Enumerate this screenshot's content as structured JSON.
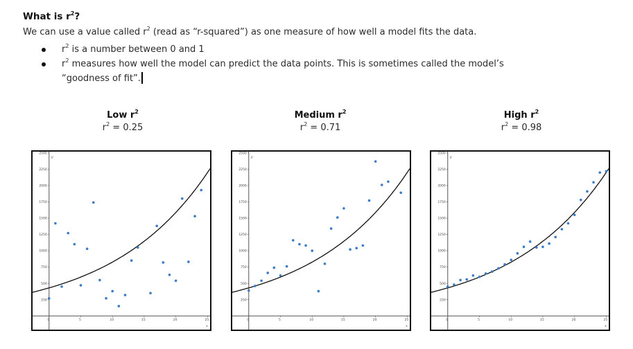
{
  "heading": {
    "text": "What is r",
    "sup": "2",
    "end": "?"
  },
  "intro": {
    "before": "We can use a value called r",
    "sup": "2",
    "after": " (read as “r-squared”) as one measure of how well a model fits the data."
  },
  "bullets": [
    {
      "prefix": "r",
      "sup": "2",
      "text": " is a number between 0 and 1",
      "cont": ""
    },
    {
      "prefix": "r",
      "sup": "2",
      "text": " measures how well the model can predict the data points. This is sometimes called the model’s",
      "cont": "“goodness of fit”."
    }
  ],
  "colors": {
    "point": "#3a7cc7",
    "curve": "#111111",
    "axis": "#555555"
  },
  "chart_data": [
    {
      "type": "scatter",
      "title": "Low r",
      "title_sup": "2",
      "subtitle_prefix": "r",
      "subtitle_sup": "2",
      "subtitle_value": " = 0.25",
      "xlabel": "x",
      "ylabel": "y",
      "xlim": [
        -2.6,
        25.4
      ],
      "ylim": [
        -210,
        2520
      ],
      "xticks": [
        0,
        5,
        10,
        15,
        20,
        25
      ],
      "yticks": [
        250,
        500,
        750,
        1000,
        1250,
        1500,
        1750,
        2000,
        2250,
        2500
      ],
      "fit": {
        "type": "exponential",
        "a": 430,
        "b": 0.0653
      },
      "points": [
        [
          0,
          270
        ],
        [
          1,
          1420
        ],
        [
          2,
          450
        ],
        [
          3,
          1270
        ],
        [
          4,
          1100
        ],
        [
          5,
          470
        ],
        [
          6,
          1030
        ],
        [
          7,
          1740
        ],
        [
          8,
          550
        ],
        [
          9,
          270
        ],
        [
          10,
          380
        ],
        [
          11,
          150
        ],
        [
          12,
          320
        ],
        [
          13,
          850
        ],
        [
          14,
          1050
        ],
        [
          16,
          350
        ],
        [
          17,
          1380
        ],
        [
          18,
          820
        ],
        [
          19,
          630
        ],
        [
          20,
          540
        ],
        [
          21,
          1800
        ],
        [
          22,
          830
        ],
        [
          23,
          1530
        ],
        [
          24,
          1930
        ]
      ]
    },
    {
      "type": "scatter",
      "title": "Medium r",
      "title_sup": "2",
      "subtitle_prefix": "r",
      "subtitle_sup": "2",
      "subtitle_value": " = 0.71",
      "xlabel": "x",
      "ylabel": "y",
      "xlim": [
        -2.6,
        25.4
      ],
      "ylim": [
        -210,
        2520
      ],
      "xticks": [
        0,
        5,
        10,
        15,
        20,
        25
      ],
      "yticks": [
        250,
        500,
        750,
        1000,
        1250,
        1500,
        1750,
        2000,
        2250,
        2500
      ],
      "fit": {
        "type": "exponential",
        "a": 430,
        "b": 0.0653
      },
      "points": [
        [
          0,
          390
        ],
        [
          1,
          460
        ],
        [
          2,
          540
        ],
        [
          3,
          660
        ],
        [
          4,
          740
        ],
        [
          5,
          620
        ],
        [
          6,
          760
        ],
        [
          7,
          1160
        ],
        [
          8,
          1100
        ],
        [
          9,
          1080
        ],
        [
          10,
          1000
        ],
        [
          11,
          380
        ],
        [
          12,
          800
        ],
        [
          13,
          1340
        ],
        [
          14,
          1510
        ],
        [
          15,
          1650
        ],
        [
          16,
          1020
        ],
        [
          17,
          1040
        ],
        [
          18,
          1080
        ],
        [
          19,
          1770
        ],
        [
          20,
          2370
        ],
        [
          21,
          2010
        ],
        [
          22,
          2060
        ],
        [
          24,
          1890
        ]
      ]
    },
    {
      "type": "scatter",
      "title": "High r",
      "title_sup": "2",
      "subtitle_prefix": "r",
      "subtitle_sup": "2",
      "subtitle_value": " = 0.98",
      "xlabel": "x",
      "ylabel": "y",
      "xlim": [
        -2.6,
        25.4
      ],
      "ylim": [
        -210,
        2520
      ],
      "xticks": [
        0,
        5,
        10,
        15,
        20,
        25
      ],
      "yticks": [
        250,
        500,
        750,
        1000,
        1250,
        1500,
        1750,
        2000,
        2250,
        2500
      ],
      "fit": {
        "type": "exponential",
        "a": 430,
        "b": 0.0653
      },
      "points": [
        [
          0,
          450
        ],
        [
          1,
          480
        ],
        [
          2,
          550
        ],
        [
          3,
          560
        ],
        [
          4,
          620
        ],
        [
          5,
          600
        ],
        [
          6,
          650
        ],
        [
          7,
          680
        ],
        [
          8,
          730
        ],
        [
          9,
          790
        ],
        [
          10,
          860
        ],
        [
          11,
          960
        ],
        [
          12,
          1060
        ],
        [
          13,
          1140
        ],
        [
          14,
          1050
        ],
        [
          15,
          1060
        ],
        [
          16,
          1110
        ],
        [
          17,
          1210
        ],
        [
          18,
          1330
        ],
        [
          19,
          1420
        ],
        [
          20,
          1550
        ],
        [
          21,
          1780
        ],
        [
          22,
          1910
        ],
        [
          23,
          2050
        ],
        [
          24,
          2200
        ],
        [
          25,
          2220
        ]
      ]
    }
  ]
}
